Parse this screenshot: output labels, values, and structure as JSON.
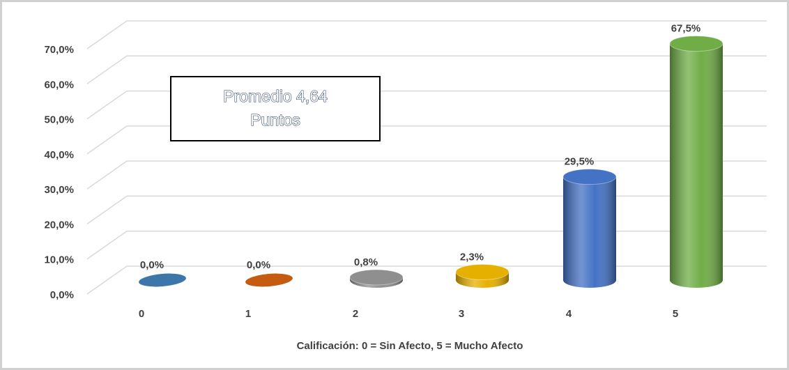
{
  "chart_data": {
    "type": "bar",
    "categories": [
      "0",
      "1",
      "2",
      "3",
      "4",
      "5"
    ],
    "values": [
      0,
      0,
      0.8,
      2.3,
      29.5,
      67.5
    ],
    "value_labels": [
      "0,0%",
      "0,0%",
      "0,8%",
      "2,3%",
      "29,5%",
      "67,5%"
    ],
    "colors": [
      "#3d76a8",
      "#c55a11",
      "#8f8f8f",
      "#e6b000",
      "#4472c4",
      "#70ad47"
    ],
    "ylim": [
      0,
      70
    ],
    "yticks": [
      {
        "value": 0,
        "label": "0,0%"
      },
      {
        "value": 10,
        "label": "10,0%"
      },
      {
        "value": 20,
        "label": "20,0%"
      },
      {
        "value": 30,
        "label": "30,0%"
      },
      {
        "value": 40,
        "label": "40,0%"
      },
      {
        "value": 50,
        "label": "50,0%"
      },
      {
        "value": 60,
        "label": "60,0%"
      },
      {
        "value": 70,
        "label": "70,0%"
      }
    ],
    "grid": true,
    "annotation": [
      "Promedio 4,64",
      "Puntos"
    ],
    "x_label": "Calificación: 0 = Sin Afecto, 5 = Mucho Afecto"
  }
}
